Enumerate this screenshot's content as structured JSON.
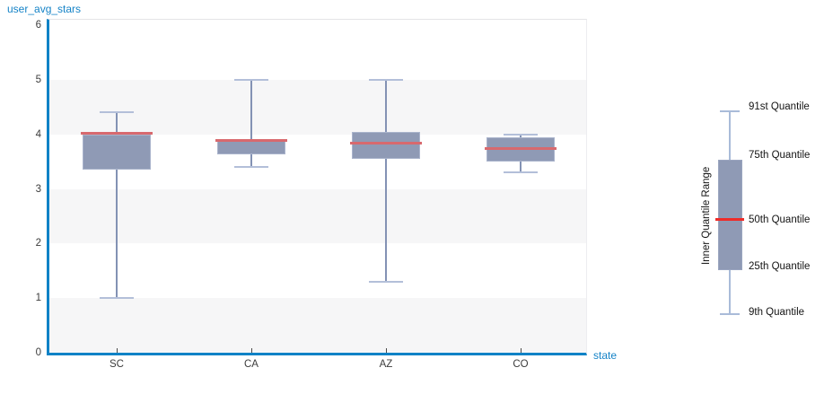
{
  "page": {
    "title": "user_avg_stars",
    "x_axis_label": "state"
  },
  "colors": {
    "axis_blue": "#0f82c6",
    "label_blue": "#1583c7",
    "box_fill": "#8f9ab5",
    "box_border": "#aab4cc",
    "whisker": "#8392b4",
    "whisker_cap": "#b3bfd9",
    "median_chart": "#d8696e",
    "median_legend": "#ee2b28",
    "band_gray": "#f6f6f7"
  },
  "chart_data": {
    "type": "boxplot",
    "title": "user_avg_stars",
    "xlabel": "state",
    "ylabel": "user_avg_stars",
    "ylim": [
      0,
      6
    ],
    "y_ticks": [
      0,
      1,
      2,
      3,
      4,
      5,
      6
    ],
    "grid": "alternating horizontal bands on 0-1, 2-3, 4-5",
    "legend_position": "right",
    "categories": [
      "SC",
      "CA",
      "AZ",
      "CO"
    ],
    "series": [
      {
        "state": "SC",
        "low": 1.0,
        "q1": 3.35,
        "median": 4.0,
        "q3": 4.0,
        "high": 4.4
      },
      {
        "state": "CA",
        "low": 3.4,
        "q1": 3.63,
        "median": 3.87,
        "q3": 3.9,
        "high": 5.0
      },
      {
        "state": "AZ",
        "low": 1.3,
        "q1": 3.55,
        "median": 3.82,
        "q3": 4.05,
        "high": 5.0
      },
      {
        "state": "CO",
        "low": 3.3,
        "q1": 3.5,
        "median": 3.72,
        "q3": 3.95,
        "high": 4.0
      }
    ]
  },
  "legend": {
    "range_label": "Inner Quantile Range",
    "items": [
      "91st Quantile",
      "75th Quantile",
      "50th Quantile",
      "25th Quantile",
      "9th Quantile"
    ]
  }
}
